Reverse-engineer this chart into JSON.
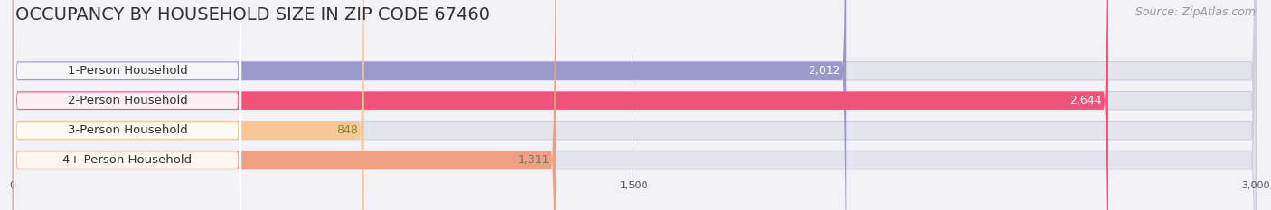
{
  "title": "OCCUPANCY BY HOUSEHOLD SIZE IN ZIP CODE 67460",
  "source": "Source: ZipAtlas.com",
  "categories": [
    "1-Person Household",
    "2-Person Household",
    "3-Person Household",
    "4+ Person Household"
  ],
  "values": [
    2012,
    2644,
    848,
    1311
  ],
  "bar_colors": [
    "#9999cc",
    "#f0527a",
    "#f5c896",
    "#f0a080"
  ],
  "value_label_colors": [
    "#ffffff",
    "#ffffff",
    "#888833",
    "#777766"
  ],
  "xlim": [
    0,
    3000
  ],
  "xticks": [
    0,
    1500,
    3000
  ],
  "background_color": "#f2f2f7",
  "bar_bg_color": "#e4e4ec",
  "bar_bg_edge_color": "#d0d0dc",
  "title_fontsize": 14,
  "source_fontsize": 9,
  "label_fontsize": 9.5,
  "value_fontsize": 9
}
